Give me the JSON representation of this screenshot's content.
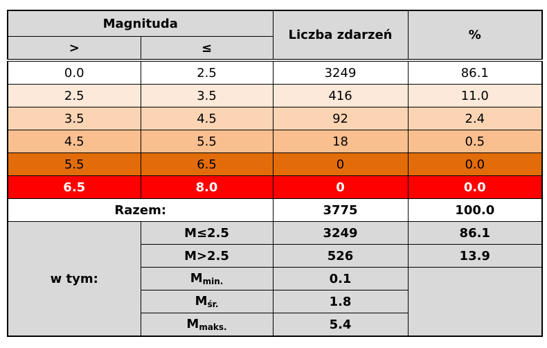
{
  "header": {
    "magnituda": "Magnituda",
    "gt": ">",
    "le": "≤",
    "count": "Liczba zdarzeń",
    "pct": "%"
  },
  "rows": [
    [
      "0.0",
      "2.5",
      "3249",
      "86.1"
    ],
    [
      "2.5",
      "3.5",
      "416",
      "11.0"
    ],
    [
      "3.5",
      "4.5",
      "92",
      "2.4"
    ],
    [
      "4.5",
      "5.5",
      "18",
      "0.5"
    ],
    [
      "5.5",
      "6.5",
      "0",
      "0.0"
    ],
    [
      "6.5",
      "8.0",
      "0",
      "0.0"
    ]
  ],
  "total": {
    "label": "Razem:",
    "count": "3775",
    "pct": "100.0"
  },
  "breakdown": {
    "label": "w tym:",
    "items": [
      {
        "label": "M≤2.5",
        "count": "3249",
        "pct": "86.1"
      },
      {
        "label": "M>2.5",
        "count": "526",
        "pct": "13.9"
      },
      {
        "label": {
          "main": "M",
          "sub": "min."
        },
        "count": "0.1"
      },
      {
        "label": {
          "main": "M",
          "sub": "śr."
        },
        "count": "1.8"
      },
      {
        "label": {
          "main": "M",
          "sub": "maks."
        },
        "count": "5.4"
      }
    ]
  }
}
